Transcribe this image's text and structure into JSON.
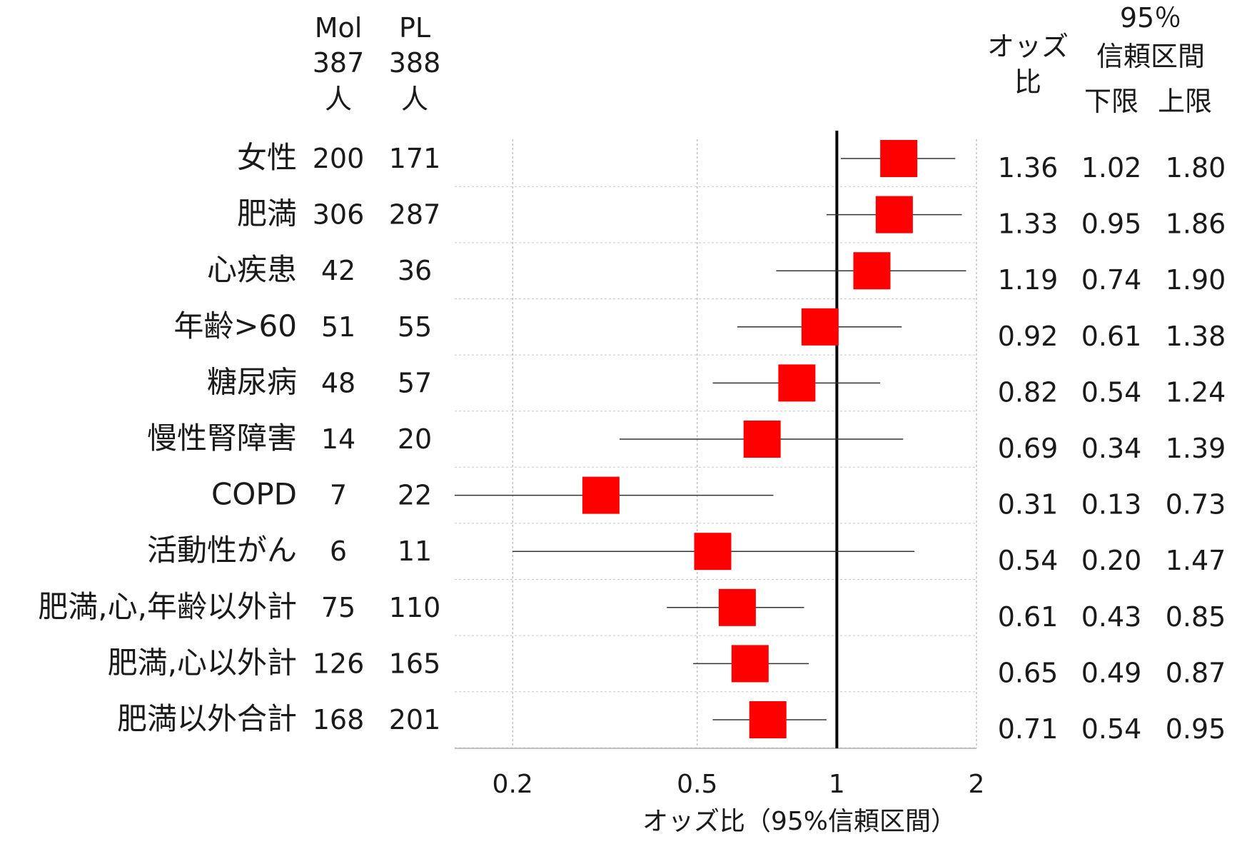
{
  "header": {
    "mol_label": "Mol",
    "mol_n": "387",
    "mol_unit": "人",
    "pl_label": "PL",
    "pl_n": "388",
    "pl_unit": "人",
    "or_label_line1": "オッズ",
    "or_label_line2": "比",
    "ci_label_line1": "95％",
    "ci_label_line2": "信頼区間",
    "ci_lower_label": "下限",
    "ci_upper_label": "上限"
  },
  "chart_data": {
    "type": "forest",
    "xlabel": "オッズ比（95%信頼区間）",
    "x_scale": "log",
    "xlim": [
      0.15,
      2.0
    ],
    "xticks": [
      0.2,
      0.5,
      1,
      2
    ],
    "xtick_labels": [
      "0.2",
      "0.5",
      "1",
      "2"
    ],
    "reference_line": 1,
    "marker_color": "#ff0000",
    "rows": [
      {
        "label": "女性",
        "mol": "200",
        "pl": "171",
        "or": 1.36,
        "lower": 1.02,
        "upper": 1.8,
        "or_text": "1.36",
        "lower_text": "1.02",
        "upper_text": "1.80"
      },
      {
        "label": "肥満",
        "mol": "306",
        "pl": "287",
        "or": 1.33,
        "lower": 0.95,
        "upper": 1.86,
        "or_text": "1.33",
        "lower_text": "0.95",
        "upper_text": "1.86"
      },
      {
        "label": "心疾患",
        "mol": "42",
        "pl": "36",
        "or": 1.19,
        "lower": 0.74,
        "upper": 1.9,
        "or_text": "1.19",
        "lower_text": "0.74",
        "upper_text": "1.90"
      },
      {
        "label": "年齢>60",
        "mol": "51",
        "pl": "55",
        "or": 0.92,
        "lower": 0.61,
        "upper": 1.38,
        "or_text": "0.92",
        "lower_text": "0.61",
        "upper_text": "1.38"
      },
      {
        "label": "糖尿病",
        "mol": "48",
        "pl": "57",
        "or": 0.82,
        "lower": 0.54,
        "upper": 1.24,
        "or_text": "0.82",
        "lower_text": "0.54",
        "upper_text": "1.24"
      },
      {
        "label": "慢性腎障害",
        "mol": "14",
        "pl": "20",
        "or": 0.69,
        "lower": 0.34,
        "upper": 1.39,
        "or_text": "0.69",
        "lower_text": "0.34",
        "upper_text": "1.39"
      },
      {
        "label": "COPD",
        "mol": "7",
        "pl": "22",
        "or": 0.31,
        "lower": 0.13,
        "upper": 0.73,
        "or_text": "0.31",
        "lower_text": "0.13",
        "upper_text": "0.73"
      },
      {
        "label": "活動性がん",
        "mol": "6",
        "pl": "11",
        "or": 0.54,
        "lower": 0.2,
        "upper": 1.47,
        "or_text": "0.54",
        "lower_text": "0.20",
        "upper_text": "1.47"
      },
      {
        "label": "肥満,心,年齢以外計",
        "mol": "75",
        "pl": "110",
        "or": 0.61,
        "lower": 0.43,
        "upper": 0.85,
        "or_text": "0.61",
        "lower_text": "0.43",
        "upper_text": "0.85"
      },
      {
        "label": "肥満,心以外計",
        "mol": "126",
        "pl": "165",
        "or": 0.65,
        "lower": 0.49,
        "upper": 0.87,
        "or_text": "0.65",
        "lower_text": "0.49",
        "upper_text": "0.87"
      },
      {
        "label": "肥満以外合計",
        "mol": "168",
        "pl": "201",
        "or": 0.71,
        "lower": 0.54,
        "upper": 0.95,
        "or_text": "0.71",
        "lower_text": "0.54",
        "upper_text": "0.95"
      }
    ]
  }
}
